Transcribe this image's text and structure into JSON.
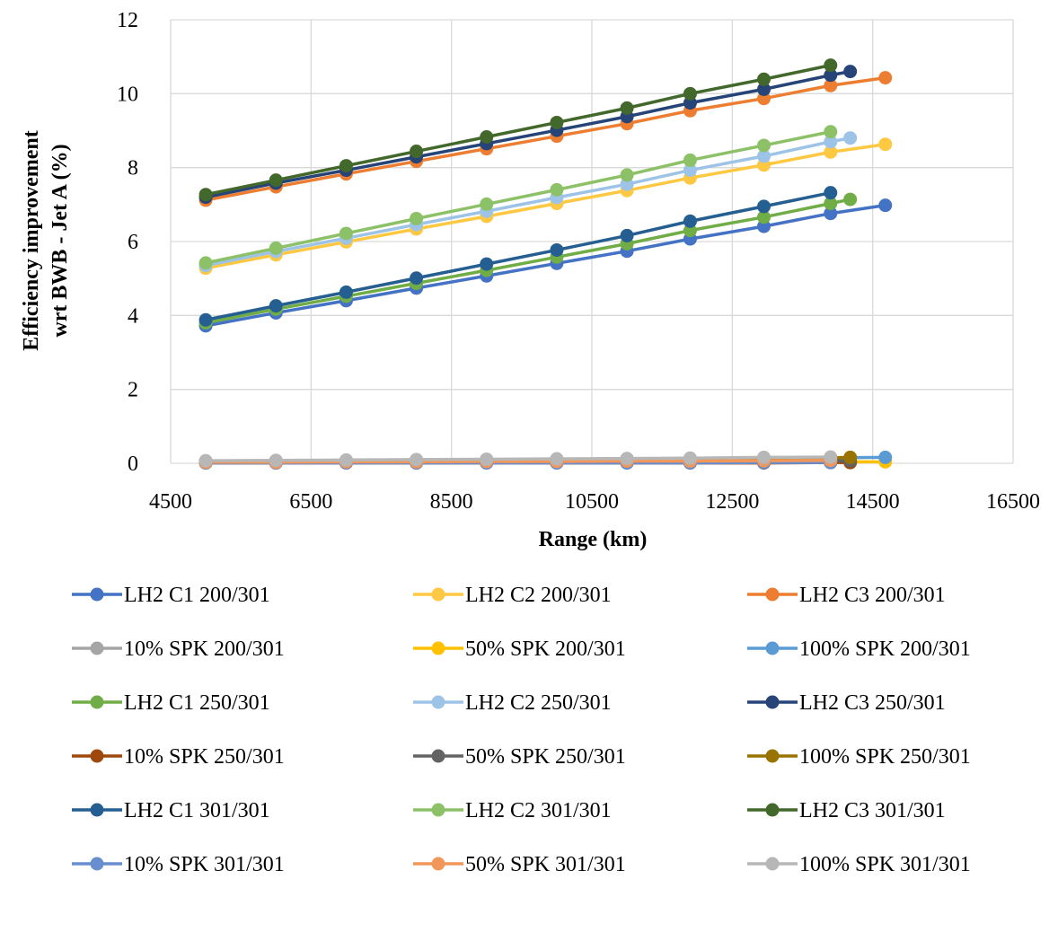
{
  "chart_data": {
    "type": "line",
    "title": "",
    "xlabel": "Range (km)",
    "ylabel_lines": [
      "Efficiency improvement",
      "wrt BWB - Jet A (%)"
    ],
    "xlim": [
      4500,
      16500
    ],
    "ylim": [
      0,
      12
    ],
    "xticks": [
      4500,
      6500,
      8500,
      10500,
      12500,
      14500,
      16500
    ],
    "yticks": [
      0,
      2,
      4,
      6,
      8,
      10,
      12
    ],
    "grid": true,
    "legend_position": "bottom",
    "series": [
      {
        "name": "LH2 C1 200/301",
        "color": "#4472C4",
        "x": [
          5000,
          6000,
          7000,
          8000,
          9000,
          10000,
          11000,
          11900,
          12950,
          13900,
          14680
        ],
        "y": [
          3.72,
          4.07,
          4.4,
          4.74,
          5.07,
          5.41,
          5.74,
          6.07,
          6.41,
          6.76,
          6.98
        ]
      },
      {
        "name": "LH2 C2 200/301",
        "color": "#FFC842",
        "x": [
          5000,
          6000,
          7000,
          8000,
          9000,
          10000,
          11000,
          11900,
          12950,
          13900,
          14680
        ],
        "y": [
          5.28,
          5.64,
          5.99,
          6.34,
          6.68,
          7.03,
          7.38,
          7.72,
          8.07,
          8.42,
          8.63
        ]
      },
      {
        "name": "LH2 C3 200/301",
        "color": "#ED7D31",
        "x": [
          5000,
          6000,
          7000,
          8000,
          9000,
          10000,
          11000,
          11900,
          12950,
          13900,
          14680
        ],
        "y": [
          7.12,
          7.48,
          7.83,
          8.17,
          8.51,
          8.85,
          9.19,
          9.54,
          9.87,
          10.22,
          10.43
        ]
      },
      {
        "name": "10% SPK 200/301",
        "color": "#A5A5A5",
        "x": [
          5000,
          6000,
          7000,
          8000,
          9000,
          10000,
          11000,
          11900,
          12950,
          13900
        ],
        "y": [
          0.04,
          0.04,
          0.05,
          0.05,
          0.05,
          0.05,
          0.05,
          0.06,
          0.06,
          0.06
        ]
      },
      {
        "name": "50% SPK 200/301",
        "color": "#FFC000",
        "x": [
          5000,
          6000,
          7000,
          8000,
          9000,
          10000,
          11000,
          11900,
          12950,
          13900,
          14680
        ],
        "y": [
          0.02,
          0.02,
          0.03,
          0.03,
          0.03,
          0.03,
          0.03,
          0.03,
          0.04,
          0.04,
          0.04
        ]
      },
      {
        "name": "100% SPK 200/301",
        "color": "#5B9BD5",
        "x": [
          5000,
          6000,
          7000,
          8000,
          9000,
          10000,
          11000,
          11900,
          12950,
          13900,
          14680
        ],
        "y": [
          0.06,
          0.07,
          0.08,
          0.09,
          0.1,
          0.11,
          0.12,
          0.13,
          0.14,
          0.15,
          0.16
        ]
      },
      {
        "name": "LH2 C1 250/301",
        "color": "#70AD47",
        "x": [
          5000,
          6000,
          7000,
          8000,
          9000,
          10000,
          11000,
          11900,
          12950,
          13900,
          14180
        ],
        "y": [
          3.8,
          4.17,
          4.52,
          4.87,
          5.22,
          5.58,
          5.94,
          6.3,
          6.66,
          7.03,
          7.14
        ]
      },
      {
        "name": "LH2 C2 250/301",
        "color": "#9DC3E6",
        "x": [
          5000,
          6000,
          7000,
          8000,
          9000,
          10000,
          11000,
          11900,
          12950,
          13900,
          14180
        ],
        "y": [
          5.35,
          5.73,
          6.09,
          6.46,
          6.82,
          7.19,
          7.55,
          7.93,
          8.31,
          8.7,
          8.8
        ]
      },
      {
        "name": "LH2 C3 250/301",
        "color": "#264478",
        "x": [
          5000,
          6000,
          7000,
          8000,
          9000,
          10000,
          11000,
          11900,
          12950,
          13900,
          14180
        ],
        "y": [
          7.2,
          7.58,
          7.93,
          8.29,
          8.65,
          9.01,
          9.38,
          9.75,
          10.12,
          10.5,
          10.6
        ]
      },
      {
        "name": "10% SPK 250/301",
        "color": "#9E480E",
        "x": [
          5000,
          6000,
          7000,
          8000,
          9000,
          10000,
          11000,
          11900,
          12950,
          13900,
          14180
        ],
        "y": [
          0.01,
          0.01,
          0.01,
          0.01,
          0.01,
          0.01,
          0.01,
          0.01,
          0.01,
          0.02,
          0.02
        ]
      },
      {
        "name": "50% SPK 250/301",
        "color": "#636363",
        "x": [
          5000,
          6000,
          7000,
          8000,
          9000,
          10000,
          11000,
          11900,
          12950,
          13900,
          14180
        ],
        "y": [
          0.03,
          0.03,
          0.04,
          0.04,
          0.05,
          0.05,
          0.05,
          0.06,
          0.06,
          0.07,
          0.07
        ]
      },
      {
        "name": "100% SPK 250/301",
        "color": "#997300",
        "x": [
          5000,
          6000,
          7000,
          8000,
          9000,
          10000,
          11000,
          11900,
          12950,
          13900,
          14180
        ],
        "y": [
          0.06,
          0.07,
          0.08,
          0.09,
          0.1,
          0.11,
          0.12,
          0.13,
          0.14,
          0.15,
          0.16
        ]
      },
      {
        "name": "LH2 C1 301/301",
        "color": "#255E91",
        "x": [
          5000,
          6000,
          7000,
          8000,
          9000,
          10000,
          11000,
          11900,
          12950,
          13900
        ],
        "y": [
          3.88,
          4.26,
          4.63,
          5.01,
          5.39,
          5.77,
          6.16,
          6.55,
          6.95,
          7.32
        ]
      },
      {
        "name": "LH2 C2 301/301",
        "color": "#8CC168",
        "x": [
          5000,
          6000,
          7000,
          8000,
          9000,
          10000,
          11000,
          11900,
          12950,
          13900
        ],
        "y": [
          5.42,
          5.82,
          6.22,
          6.62,
          7.01,
          7.4,
          7.8,
          8.2,
          8.6,
          8.97
        ]
      },
      {
        "name": "LH2 C3 301/301",
        "color": "#43682B",
        "x": [
          5000,
          6000,
          7000,
          8000,
          9000,
          10000,
          11000,
          11900,
          12950,
          13900
        ],
        "y": [
          7.27,
          7.66,
          8.05,
          8.44,
          8.83,
          9.22,
          9.61,
          10.0,
          10.39,
          10.77
        ]
      },
      {
        "name": "10% SPK 301/301",
        "color": "#698ED0",
        "x": [
          5000,
          6000,
          7000,
          8000,
          9000,
          10000,
          11000,
          11900,
          12950,
          13900
        ],
        "y": [
          0.01,
          0.01,
          0.01,
          0.01,
          0.01,
          0.01,
          0.01,
          0.01,
          0.02,
          0.02
        ]
      },
      {
        "name": "50% SPK 301/301",
        "color": "#F1975A",
        "x": [
          5000,
          6000,
          7000,
          8000,
          9000,
          10000,
          11000,
          11900,
          12950,
          13900
        ],
        "y": [
          0.03,
          0.03,
          0.04,
          0.04,
          0.05,
          0.05,
          0.06,
          0.06,
          0.07,
          0.08
        ]
      },
      {
        "name": "100% SPK 301/301",
        "color": "#B7B7B7",
        "x": [
          5000,
          6000,
          7000,
          8000,
          9000,
          10000,
          11000,
          11900,
          12950,
          13900
        ],
        "y": [
          0.07,
          0.08,
          0.09,
          0.1,
          0.11,
          0.12,
          0.13,
          0.14,
          0.16,
          0.17
        ]
      }
    ]
  }
}
